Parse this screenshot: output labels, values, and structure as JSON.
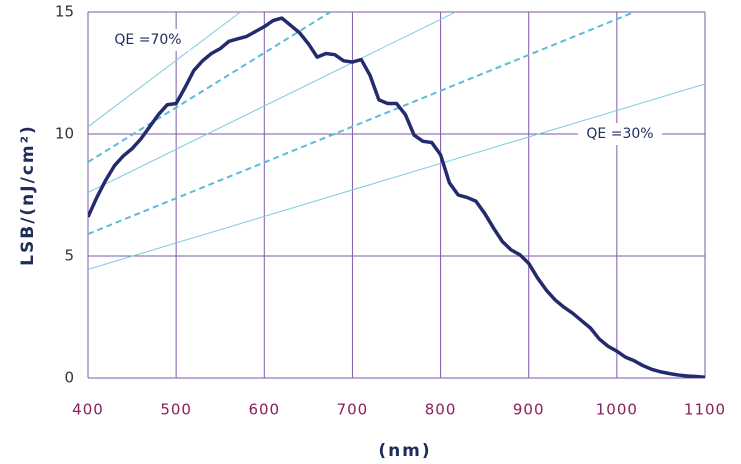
{
  "chart_data": {
    "type": "line",
    "x_label": "(nm)",
    "y_label": "LSB/(nJ/cm²)",
    "xlim": [
      400,
      1100
    ],
    "xticks": [
      400,
      500,
      600,
      700,
      800,
      900,
      1000,
      1100
    ],
    "ylim": [
      0,
      15
    ],
    "yticks": [
      0,
      5,
      10,
      15
    ],
    "grid": true,
    "grid_color": "#7e5aa8",
    "annotations": [
      "QE =70%",
      "QE =30%"
    ],
    "series": [
      {
        "color": "#232b6e",
        "width": 3.5,
        "dashed": false,
        "x": [
          400,
          410,
          420,
          430,
          440,
          450,
          460,
          470,
          480,
          490,
          500,
          510,
          520,
          530,
          540,
          550,
          560,
          570,
          580,
          590,
          600,
          610,
          620,
          630,
          640,
          650,
          660,
          670,
          680,
          690,
          700,
          710,
          720,
          730,
          740,
          750,
          760,
          770,
          780,
          790,
          800,
          810,
          820,
          830,
          840,
          850,
          860,
          870,
          880,
          890,
          900,
          910,
          920,
          930,
          940,
          950,
          960,
          970,
          980,
          990,
          1000,
          1010,
          1020,
          1030,
          1040,
          1050,
          1060,
          1070,
          1080,
          1090,
          1100
        ],
        "values": [
          6.6,
          7.4,
          8.1,
          8.7,
          9.1,
          9.4,
          9.8,
          10.3,
          10.8,
          11.2,
          11.25,
          11.9,
          12.6,
          13.0,
          13.3,
          13.5,
          13.8,
          13.9,
          14.0,
          14.2,
          14.4,
          14.65,
          14.75,
          14.45,
          14.15,
          13.7,
          13.15,
          13.3,
          13.25,
          13.0,
          12.95,
          13.05,
          12.4,
          11.4,
          11.25,
          11.25,
          10.8,
          9.95,
          9.7,
          9.65,
          9.15,
          8.0,
          7.5,
          7.4,
          7.25,
          6.75,
          6.15,
          5.6,
          5.25,
          5.05,
          4.7,
          4.1,
          3.6,
          3.2,
          2.9,
          2.65,
          2.35,
          2.05,
          1.6,
          1.3,
          1.1,
          0.85,
          0.7,
          0.5,
          0.35,
          0.25,
          0.18,
          0.12,
          0.08,
          0.06,
          0.03
        ]
      },
      {
        "color": "#7ccbe0",
        "width": 1,
        "dashed": false,
        "x": [
          400,
          573
        ],
        "values": [
          10.3,
          15
        ]
      },
      {
        "color": "#5bbcd8",
        "width": 2,
        "dashed": true,
        "x": [
          400,
          675
        ],
        "values": [
          8.85,
          15
        ]
      },
      {
        "color": "#7ccbe0",
        "width": 1,
        "dashed": false,
        "x": [
          400,
          817
        ],
        "values": [
          7.6,
          15
        ]
      },
      {
        "color": "#5bbcd8",
        "width": 2,
        "dashed": true,
        "x": [
          400,
          1020
        ],
        "values": [
          5.9,
          15
        ]
      },
      {
        "color": "#7ccbe0",
        "width": 1,
        "dashed": false,
        "x": [
          400,
          1100
        ],
        "values": [
          4.45,
          12.05
        ]
      }
    ]
  }
}
